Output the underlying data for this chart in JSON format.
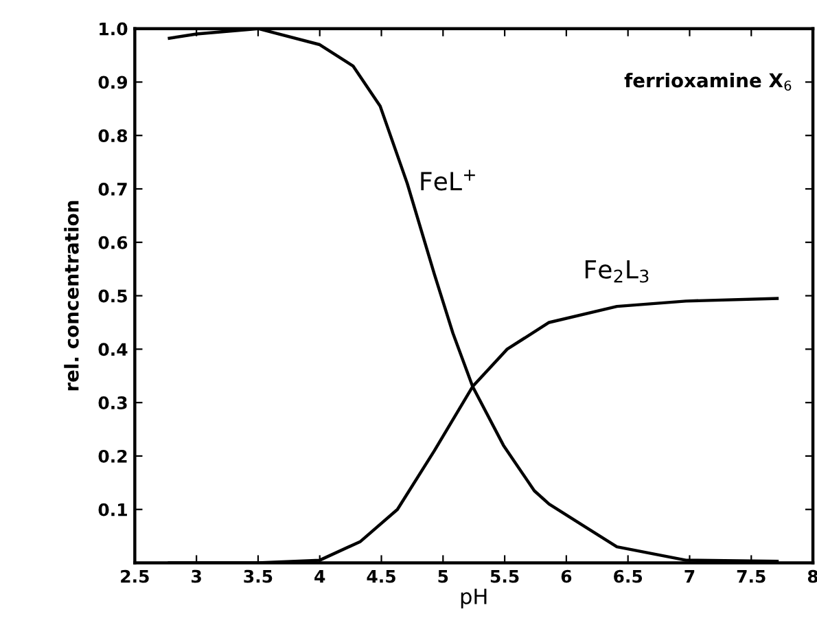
{
  "chart_data": {
    "type": "line",
    "xlabel": "pH",
    "ylabel": "rel. concentration",
    "annotations": [
      "ferrioxamine X$_{6}$"
    ],
    "series": [
      {
        "name": "FeL$^{+}$",
        "color": "#000000",
        "x": [
          2.78,
          3.0,
          3.5,
          4.0,
          4.27,
          4.49,
          4.71,
          4.93,
          5.08,
          5.24,
          5.49,
          5.74,
          5.86,
          6.41,
          6.97,
          7.71
        ],
        "values": [
          0.982,
          0.99,
          1.0,
          0.97,
          0.93,
          0.855,
          0.71,
          0.54,
          0.43,
          0.33,
          0.22,
          0.135,
          0.11,
          0.03,
          0.005,
          0.003
        ]
      },
      {
        "name": "Fe$_{2}$L$_{3}$",
        "color": "#000000",
        "x": [
          2.78,
          3.5,
          4.0,
          4.33,
          4.63,
          4.93,
          5.24,
          5.52,
          5.86,
          6.41,
          6.97,
          7.71
        ],
        "values": [
          0.0,
          0.0,
          0.005,
          0.04,
          0.1,
          0.21,
          0.33,
          0.4,
          0.45,
          0.48,
          0.49,
          0.495
        ]
      }
    ],
    "xlim": [
      2.5,
      8
    ],
    "ylim": [
      0,
      1
    ],
    "xticks": [
      2.5,
      3,
      3.5,
      4,
      4.5,
      5,
      5.5,
      6,
      6.5,
      7,
      7.5,
      8
    ],
    "yticks": [
      0.1,
      0.2,
      0.3,
      0.4,
      0.5,
      0.6,
      0.7,
      0.8,
      0.9,
      {
        "value": 1,
        "label": "1.0"
      }
    ],
    "grid": false,
    "legend": false,
    "marker": "none",
    "line_style": "solid"
  }
}
